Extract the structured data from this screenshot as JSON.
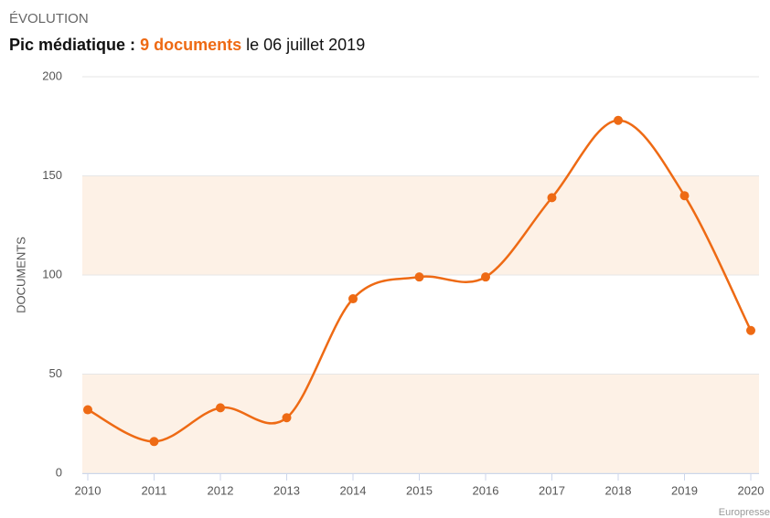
{
  "chart_data": {
    "type": "line",
    "kicker": "ÉVOLUTION",
    "subtitle": {
      "prefix": "Pic médiatique :",
      "highlight": "9 documents",
      "suffix": "le 06 juillet 2019"
    },
    "ylabel": "DOCUMENTS",
    "credit": "Europresse",
    "categories": [
      "2010",
      "2011",
      "2012",
      "2013",
      "2014",
      "2015",
      "2016",
      "2017",
      "2018",
      "2019",
      "2020"
    ],
    "series": [
      {
        "name": "Documents",
        "color": "#ee6a14",
        "values": [
          32,
          16,
          33,
          28,
          88,
          99,
          99,
          139,
          178,
          140,
          72
        ]
      }
    ],
    "ylim": [
      0,
      200
    ],
    "yticks": [
      0,
      50,
      100,
      150,
      200
    ],
    "grid": true,
    "bands": [
      [
        0,
        50
      ],
      [
        100,
        150
      ]
    ],
    "band_color": "#fdf1e6"
  }
}
